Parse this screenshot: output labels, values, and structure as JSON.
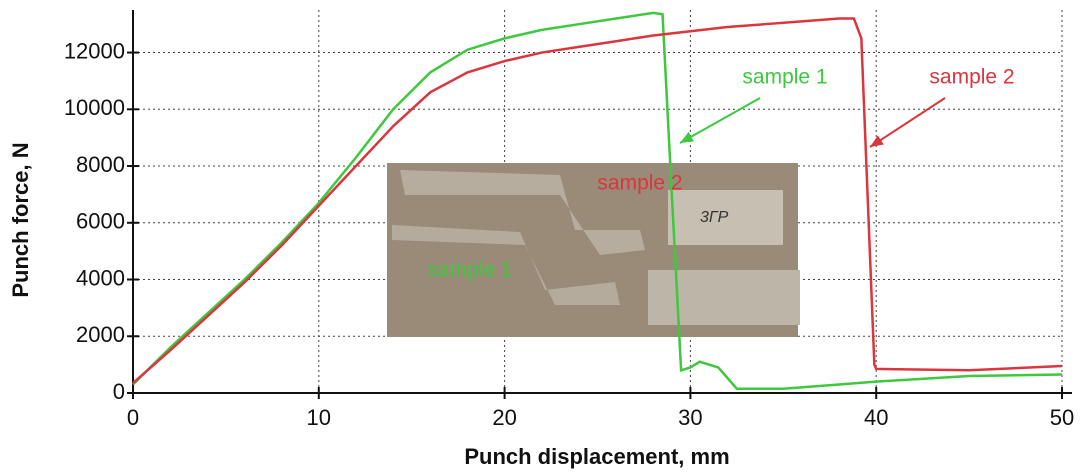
{
  "chart_data": {
    "type": "line",
    "xlabel": "Punch displacement, mm",
    "ylabel": "Punch force, N",
    "xlim": [
      0,
      50
    ],
    "xticks": [
      0,
      10,
      20,
      30,
      40,
      50
    ],
    "ylim": [
      0,
      13500
    ],
    "yticks": [
      0,
      2000,
      4000,
      6000,
      8000,
      10000,
      12000
    ],
    "grid": true,
    "series": [
      {
        "name": "sample 1",
        "color": "#3ec83e",
        "x": [
          0,
          2,
          4,
          6,
          8,
          10,
          12,
          14,
          16,
          18,
          20,
          22,
          24,
          26,
          28,
          28.5,
          29,
          29.5,
          30,
          30.5,
          31.5,
          32.5,
          35,
          40,
          45,
          50
        ],
        "values": [
          300,
          1600,
          2800,
          4000,
          5300,
          6700,
          8300,
          10000,
          11300,
          12100,
          12500,
          12800,
          13000,
          13200,
          13400,
          13350,
          7000,
          800,
          900,
          1100,
          900,
          150,
          150,
          400,
          600,
          650
        ]
      },
      {
        "name": "sample 2",
        "color": "#d9363e",
        "x": [
          0,
          2,
          4,
          6,
          8,
          10,
          12,
          14,
          16,
          18,
          20,
          22,
          24,
          26,
          28,
          30,
          32,
          34,
          36,
          38,
          38.8,
          39.2,
          39.9,
          40,
          45,
          50
        ],
        "values": [
          350,
          1500,
          2700,
          3900,
          5200,
          6600,
          8000,
          9400,
          10600,
          11300,
          11700,
          12000,
          12200,
          12400,
          12600,
          12750,
          12900,
          13000,
          13100,
          13200,
          13200,
          12500,
          1000,
          850,
          800,
          950
        ]
      }
    ],
    "inset_labels": [
      "sample 2",
      "sample 1"
    ]
  }
}
